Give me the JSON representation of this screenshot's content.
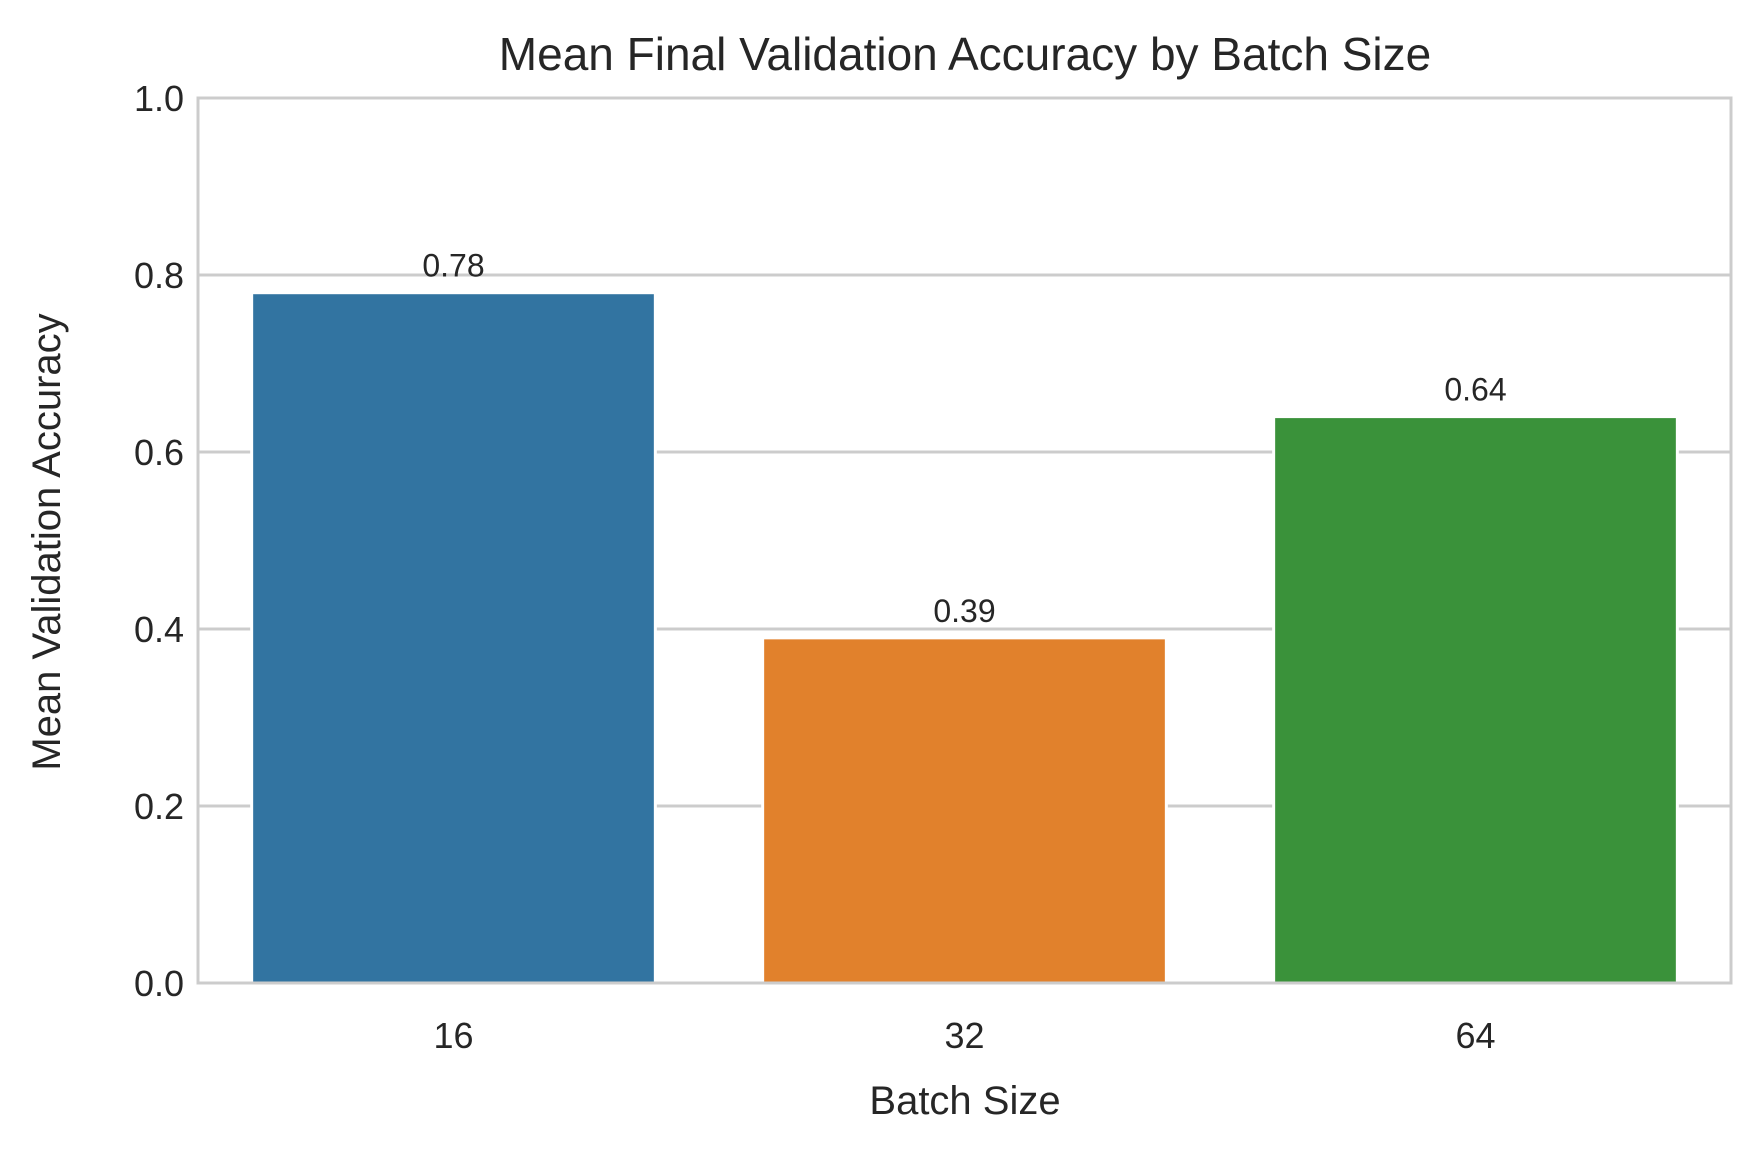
{
  "chart_data": {
    "type": "bar",
    "title": "Mean Final Validation Accuracy by Batch Size",
    "xlabel": "Batch Size",
    "ylabel": "Mean Validation Accuracy",
    "categories": [
      "16",
      "32",
      "64"
    ],
    "values": [
      0.78,
      0.39,
      0.64
    ],
    "value_labels": [
      "0.78",
      "0.39",
      "0.64"
    ],
    "colors": [
      "#3274a1",
      "#e1812c",
      "#3a923a"
    ],
    "ylim": [
      0,
      1.0
    ],
    "yticks": [
      0.0,
      0.2,
      0.4,
      0.6,
      0.8,
      1.0
    ],
    "ytick_labels": [
      "0.0",
      "0.2",
      "0.4",
      "0.6",
      "0.8",
      "1.0"
    ],
    "grid": true,
    "grid_axis": "y",
    "grid_color": "#cccccc",
    "frame_color": "#cccccc",
    "background": "#ffffff"
  }
}
